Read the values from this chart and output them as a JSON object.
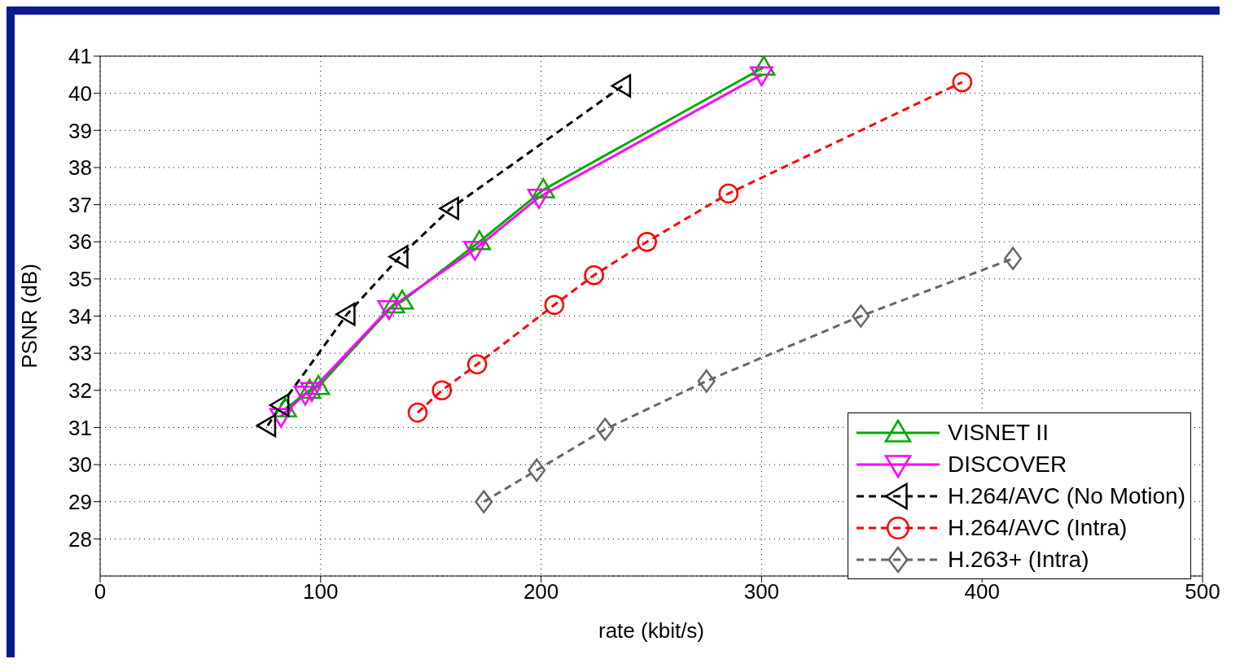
{
  "chart_data": {
    "type": "line",
    "xlabel": "rate (kbit/s)",
    "ylabel": "PSNR (dB)",
    "xlim": [
      0,
      500
    ],
    "xticks": [
      0,
      100,
      200,
      300,
      400,
      500
    ],
    "ylim": [
      27,
      41
    ],
    "yticks": [
      28,
      29,
      30,
      31,
      32,
      33,
      34,
      35,
      36,
      37,
      38,
      39,
      40,
      41
    ],
    "grid": true,
    "legend": "bottom right",
    "series": [
      {
        "name": "VISNET II",
        "color": "#00aa00",
        "marker": "triangle",
        "line_style": "solid",
        "x": [
          84,
          95,
          99,
          133,
          137,
          172,
          201,
          301
        ],
        "values": [
          31.5,
          32.0,
          32.1,
          34.3,
          34.4,
          36.0,
          37.4,
          40.7
        ]
      },
      {
        "name": "DISCOVER",
        "color": "#ff00ff",
        "marker": "triangle-down",
        "line_style": "solid",
        "x": [
          82,
          93,
          96,
          131,
          170,
          199,
          300
        ],
        "values": [
          31.3,
          31.9,
          32.0,
          34.2,
          35.8,
          37.2,
          40.5
        ]
      },
      {
        "name": "H.264/AVC (No Motion)",
        "color": "#000000",
        "marker": "triangle-left",
        "line_style": "dashed",
        "x": [
          76,
          82,
          112,
          136,
          159,
          237
        ],
        "values": [
          31.05,
          31.6,
          34.05,
          35.6,
          36.9,
          40.2
        ]
      },
      {
        "name": "H.264/AVC (Intra)",
        "color": "#ff0000",
        "marker": "circle",
        "line_style": "dashed",
        "x": [
          144,
          155,
          171,
          206,
          224,
          248,
          285,
          391
        ],
        "values": [
          31.4,
          32.0,
          32.7,
          34.3,
          35.1,
          36.0,
          37.3,
          40.3
        ]
      },
      {
        "name": "H.263+ (Intra)",
        "color": "#666666",
        "marker": "diamond",
        "line_style": "dashed",
        "x": [
          174,
          198,
          229,
          275,
          345,
          414
        ],
        "values": [
          29.0,
          29.85,
          30.95,
          32.25,
          34.0,
          35.55
        ]
      }
    ]
  }
}
